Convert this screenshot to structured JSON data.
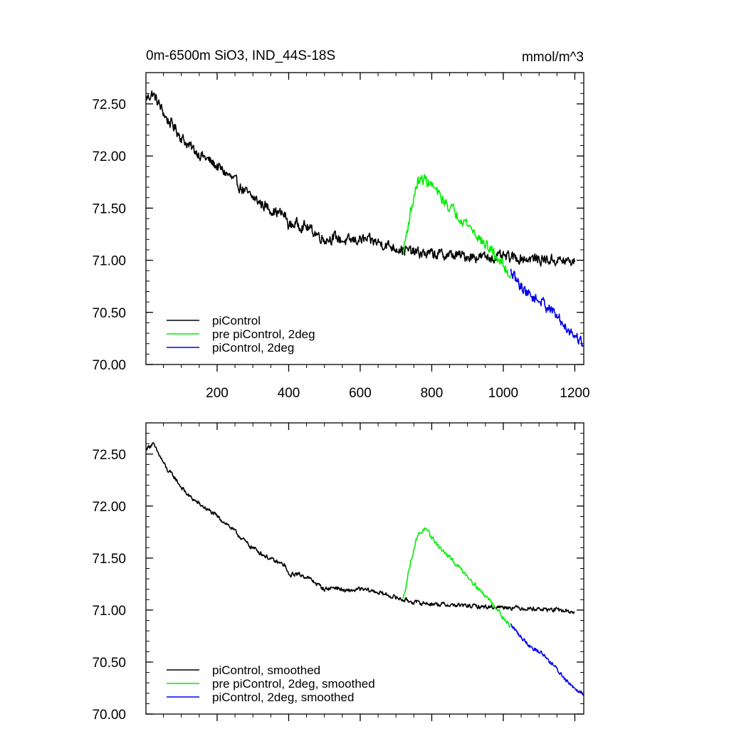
{
  "chart_data": [
    {
      "type": "line",
      "title": "0m-6500m SiO3, IND_44S-18S",
      "units": "mmol/m^3",
      "xlabel": "",
      "ylabel": "",
      "xlim": [
        1,
        1225
      ],
      "ylim": [
        70.0,
        72.8
      ],
      "xticks": [
        200,
        400,
        600,
        800,
        1000,
        1200
      ],
      "yticks": [
        70.0,
        70.5,
        71.0,
        71.5,
        72.0,
        72.5
      ],
      "ytick_labels": [
        "70.00",
        "70.50",
        "71.00",
        "71.50",
        "72.00",
        "72.50"
      ],
      "xtick_labels": [
        "200",
        "400",
        "600",
        "800",
        "1000",
        "1200"
      ],
      "show_xtick_labels": true,
      "legend_position": "bottom-left",
      "series": [
        {
          "name": "piControl",
          "color": "#000000",
          "noise": 0.045,
          "x": [
            1,
            20,
            40,
            60,
            80,
            100,
            120,
            150,
            180,
            200,
            230,
            260,
            290,
            300,
            330,
            360,
            390,
            400,
            420,
            450,
            480,
            500,
            530,
            560,
            600,
            640,
            680,
            720,
            760,
            800,
            850,
            900,
            950,
            1000,
            1050,
            1100,
            1150,
            1200
          ],
          "values": [
            72.55,
            72.6,
            72.48,
            72.35,
            72.28,
            72.18,
            72.1,
            72.02,
            71.95,
            71.9,
            71.82,
            71.72,
            71.62,
            71.6,
            71.53,
            71.47,
            71.43,
            71.33,
            71.35,
            71.32,
            71.25,
            71.2,
            71.22,
            71.18,
            71.2,
            71.18,
            71.14,
            71.1,
            71.07,
            71.06,
            71.05,
            71.04,
            71.03,
            71.03,
            71.02,
            71.01,
            71.0,
            70.98
          ]
        },
        {
          "name": "pre piControl, 2deg",
          "color": "#00ee00",
          "noise": 0.045,
          "x": [
            720,
            740,
            760,
            780,
            800,
            830,
            860,
            900,
            940,
            970,
            1000,
            1020
          ],
          "values": [
            71.08,
            71.45,
            71.75,
            71.78,
            71.72,
            71.58,
            71.48,
            71.35,
            71.18,
            71.08,
            70.95,
            70.85
          ]
        },
        {
          "name": "piControl, 2deg",
          "color": "#0000ee",
          "noise": 0.045,
          "x": [
            1020,
            1050,
            1080,
            1110,
            1140,
            1170,
            1200,
            1225
          ],
          "values": [
            70.88,
            70.75,
            70.65,
            70.6,
            70.5,
            70.38,
            70.28,
            70.2
          ]
        }
      ]
    },
    {
      "type": "line",
      "title": "",
      "units": "",
      "xlabel": "",
      "ylabel": "",
      "xlim": [
        1,
        1225
      ],
      "ylim": [
        70.0,
        72.8
      ],
      "xticks": [
        200,
        400,
        600,
        800,
        1000,
        1200
      ],
      "yticks": [
        70.0,
        70.5,
        71.0,
        71.5,
        72.0,
        72.5
      ],
      "ytick_labels": [
        "70.00",
        "70.50",
        "71.00",
        "71.50",
        "72.00",
        "72.50"
      ],
      "xtick_labels": [],
      "show_xtick_labels": false,
      "legend_position": "bottom-left",
      "series": [
        {
          "name": "piControl, smoothed",
          "color": "#000000",
          "noise": 0.018,
          "x": [
            1,
            20,
            40,
            60,
            80,
            100,
            120,
            150,
            180,
            200,
            230,
            260,
            290,
            300,
            330,
            360,
            390,
            400,
            420,
            450,
            480,
            500,
            530,
            560,
            600,
            640,
            680,
            720,
            760,
            800,
            850,
            900,
            950,
            1000,
            1050,
            1100,
            1150,
            1200
          ],
          "values": [
            72.55,
            72.6,
            72.48,
            72.35,
            72.28,
            72.18,
            72.1,
            72.02,
            71.95,
            71.9,
            71.82,
            71.72,
            71.62,
            71.6,
            71.53,
            71.47,
            71.43,
            71.33,
            71.35,
            71.32,
            71.25,
            71.2,
            71.22,
            71.18,
            71.2,
            71.18,
            71.14,
            71.1,
            71.07,
            71.06,
            71.05,
            71.04,
            71.03,
            71.03,
            71.02,
            71.01,
            71.0,
            70.98
          ]
        },
        {
          "name": "pre piControl, 2deg, smoothed",
          "color": "#00ee00",
          "noise": 0.018,
          "x": [
            720,
            740,
            760,
            780,
            800,
            830,
            860,
            900,
            940,
            970,
            1000,
            1020
          ],
          "values": [
            71.1,
            71.45,
            71.72,
            71.78,
            71.7,
            71.57,
            71.47,
            71.33,
            71.17,
            71.07,
            70.93,
            70.84
          ]
        },
        {
          "name": "piControl, 2deg, smoothed",
          "color": "#0000ee",
          "noise": 0.018,
          "x": [
            1020,
            1050,
            1080,
            1110,
            1140,
            1170,
            1200,
            1225
          ],
          "values": [
            70.86,
            70.74,
            70.64,
            70.58,
            70.47,
            70.35,
            70.25,
            70.2
          ]
        }
      ]
    }
  ]
}
